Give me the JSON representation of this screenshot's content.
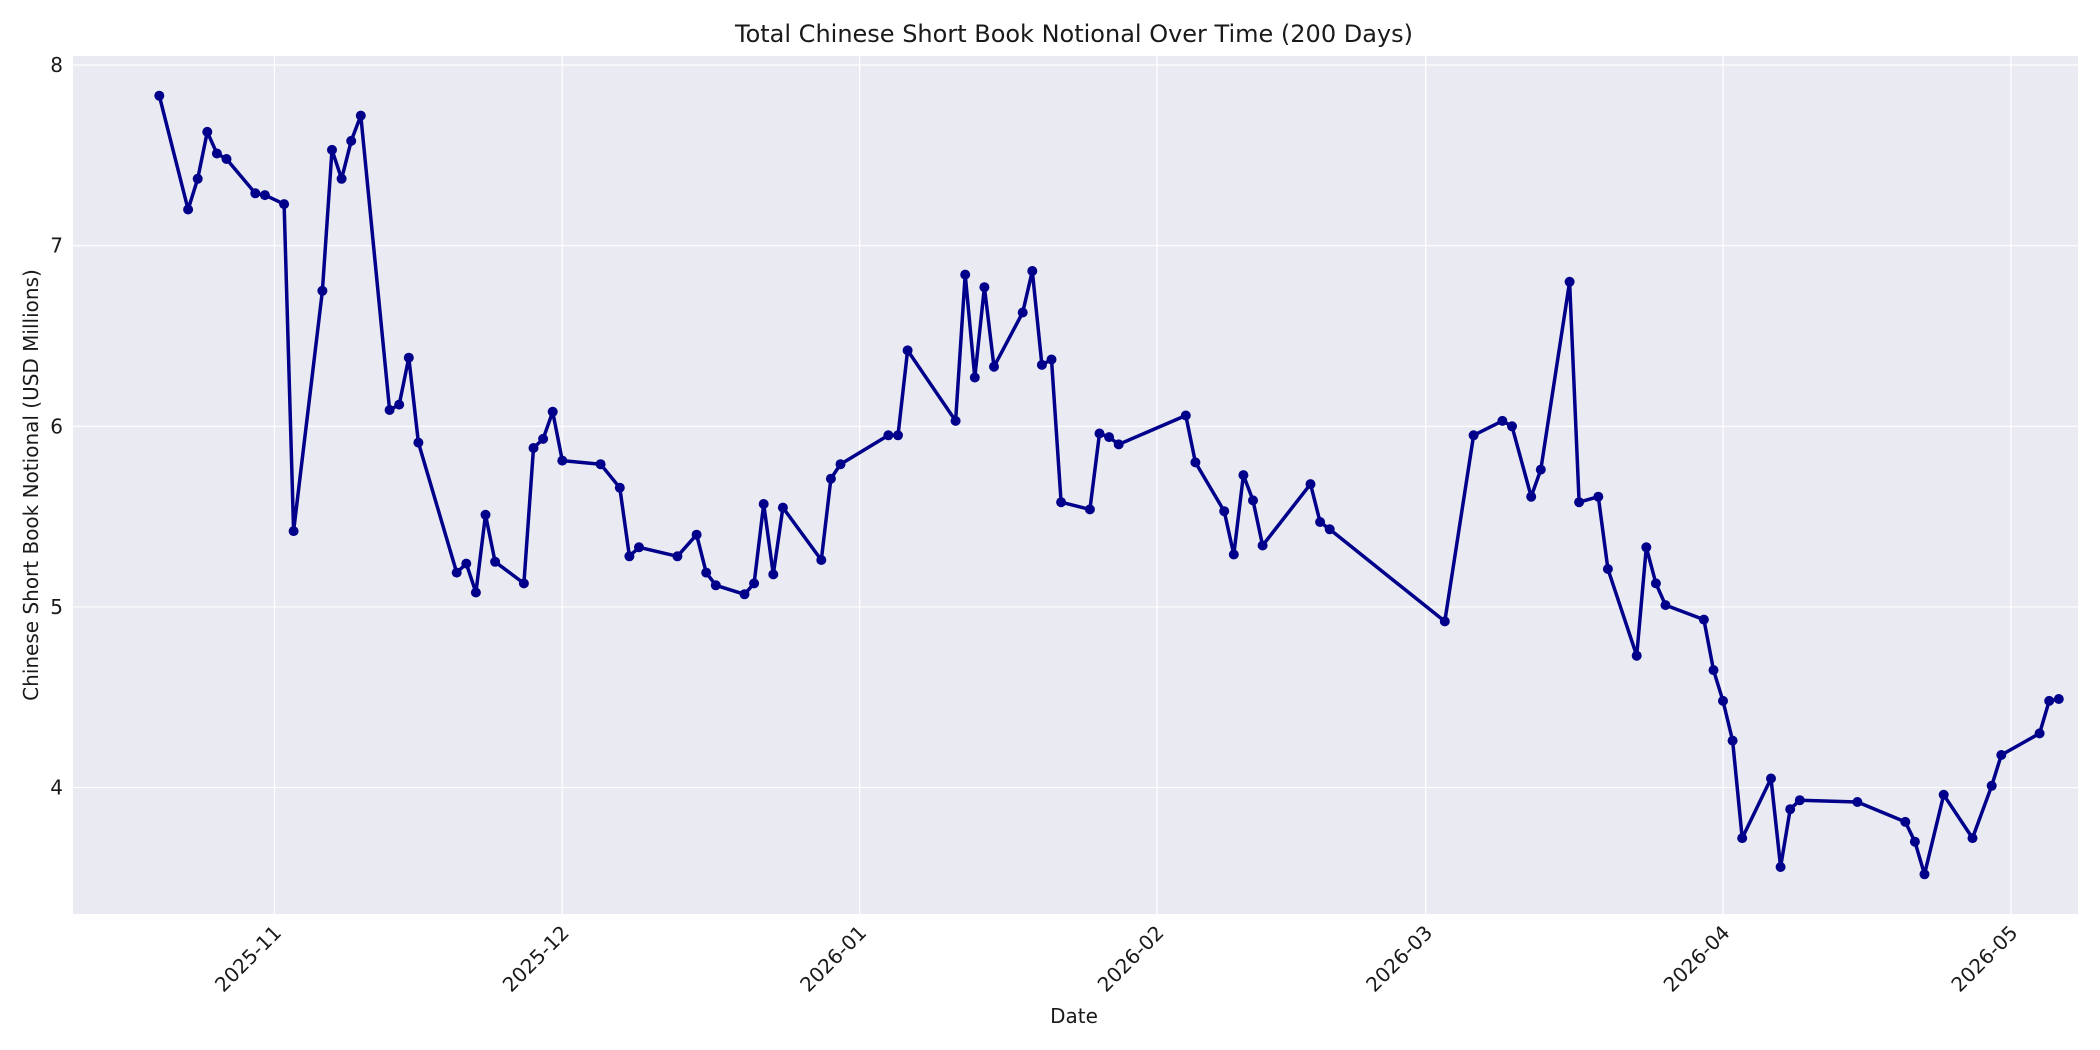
{
  "chart_data": {
    "type": "line",
    "title": "Total Chinese Short Book Notional Over Time (200 Days)",
    "xlabel": "Date",
    "ylabel": "Chinese Short Book Notional (USD Millions)",
    "x_type": "date",
    "xlim": [
      "2025-10-11",
      "2026-05-08"
    ],
    "ylim": [
      3.3,
      8.05
    ],
    "grid": true,
    "legend": "none",
    "x_ticks": [
      {
        "date": "2025-11-01",
        "label": "2025-11"
      },
      {
        "date": "2025-12-01",
        "label": "2025-12"
      },
      {
        "date": "2026-01-01",
        "label": "2026-01"
      },
      {
        "date": "2026-02-01",
        "label": "2026-02"
      },
      {
        "date": "2026-03-01",
        "label": "2026-03"
      },
      {
        "date": "2026-04-01",
        "label": "2026-04"
      },
      {
        "date": "2026-05-01",
        "label": "2026-05"
      }
    ],
    "y_ticks": [
      4,
      5,
      6,
      7,
      8
    ],
    "colors": {
      "series": "#00008B",
      "plot_background": "#EAEAF2",
      "grid": "#FFFFFF"
    },
    "series": [
      {
        "marker": "circle",
        "points": [
          [
            "2025-10-20",
            7.83
          ],
          [
            "2025-10-23",
            7.2
          ],
          [
            "2025-10-24",
            7.37
          ],
          [
            "2025-10-25",
            7.63
          ],
          [
            "2025-10-26",
            7.51
          ],
          [
            "2025-10-27",
            7.48
          ],
          [
            "2025-10-30",
            7.29
          ],
          [
            "2025-10-31",
            7.28
          ],
          [
            "2025-11-02",
            7.23
          ],
          [
            "2025-11-03",
            5.42
          ],
          [
            "2025-11-06",
            6.75
          ],
          [
            "2025-11-07",
            7.53
          ],
          [
            "2025-11-08",
            7.37
          ],
          [
            "2025-11-09",
            7.58
          ],
          [
            "2025-11-10",
            7.72
          ],
          [
            "2025-11-13",
            6.09
          ],
          [
            "2025-11-14",
            6.12
          ],
          [
            "2025-11-15",
            6.38
          ],
          [
            "2025-11-16",
            5.91
          ],
          [
            "2025-11-20",
            5.19
          ],
          [
            "2025-11-21",
            5.24
          ],
          [
            "2025-11-22",
            5.08
          ],
          [
            "2025-11-23",
            5.51
          ],
          [
            "2025-11-24",
            5.25
          ],
          [
            "2025-11-27",
            5.13
          ],
          [
            "2025-11-28",
            5.88
          ],
          [
            "2025-11-29",
            5.93
          ],
          [
            "2025-11-30",
            6.08
          ],
          [
            "2025-12-01",
            5.81
          ],
          [
            "2025-12-05",
            5.79
          ],
          [
            "2025-12-07",
            5.66
          ],
          [
            "2025-12-08",
            5.28
          ],
          [
            "2025-12-09",
            5.33
          ],
          [
            "2025-12-13",
            5.28
          ],
          [
            "2025-12-15",
            5.4
          ],
          [
            "2025-12-16",
            5.19
          ],
          [
            "2025-12-17",
            5.12
          ],
          [
            "2025-12-20",
            5.07
          ],
          [
            "2025-12-21",
            5.13
          ],
          [
            "2025-12-22",
            5.57
          ],
          [
            "2025-12-23",
            5.18
          ],
          [
            "2025-12-24",
            5.55
          ],
          [
            "2025-12-28",
            5.26
          ],
          [
            "2025-12-29",
            5.71
          ],
          [
            "2025-12-30",
            5.79
          ],
          [
            "2026-01-04",
            5.95
          ],
          [
            "2026-01-05",
            5.95
          ],
          [
            "2026-01-06",
            6.42
          ],
          [
            "2026-01-11",
            6.03
          ],
          [
            "2026-01-12",
            6.84
          ],
          [
            "2026-01-13",
            6.27
          ],
          [
            "2026-01-14",
            6.77
          ],
          [
            "2026-01-15",
            6.33
          ],
          [
            "2026-01-18",
            6.63
          ],
          [
            "2026-01-19",
            6.86
          ],
          [
            "2026-01-20",
            6.34
          ],
          [
            "2026-01-21",
            6.37
          ],
          [
            "2026-01-22",
            5.58
          ],
          [
            "2026-01-25",
            5.54
          ],
          [
            "2026-01-26",
            5.96
          ],
          [
            "2026-01-27",
            5.94
          ],
          [
            "2026-01-28",
            5.9
          ],
          [
            "2026-02-04",
            6.06
          ],
          [
            "2026-02-05",
            5.8
          ],
          [
            "2026-02-08",
            5.53
          ],
          [
            "2026-02-09",
            5.29
          ],
          [
            "2026-02-10",
            5.73
          ],
          [
            "2026-02-11",
            5.59
          ],
          [
            "2026-02-12",
            5.34
          ],
          [
            "2026-02-17",
            5.68
          ],
          [
            "2026-02-18",
            5.47
          ],
          [
            "2026-02-19",
            5.43
          ],
          [
            "2026-03-03",
            4.92
          ],
          [
            "2026-03-06",
            5.95
          ],
          [
            "2026-03-09",
            6.03
          ],
          [
            "2026-03-10",
            6.0
          ],
          [
            "2026-03-12",
            5.61
          ],
          [
            "2026-03-13",
            5.76
          ],
          [
            "2026-03-16",
            6.8
          ],
          [
            "2026-03-17",
            5.58
          ],
          [
            "2026-03-19",
            5.61
          ],
          [
            "2026-03-20",
            5.21
          ],
          [
            "2026-03-23",
            4.73
          ],
          [
            "2026-03-24",
            5.33
          ],
          [
            "2026-03-25",
            5.13
          ],
          [
            "2026-03-26",
            5.01
          ],
          [
            "2026-03-30",
            4.93
          ],
          [
            "2026-03-31",
            4.65
          ],
          [
            "2026-04-01",
            4.48
          ],
          [
            "2026-04-02",
            4.26
          ],
          [
            "2026-04-03",
            3.72
          ],
          [
            "2026-04-06",
            4.05
          ],
          [
            "2026-04-07",
            3.56
          ],
          [
            "2026-04-08",
            3.88
          ],
          [
            "2026-04-09",
            3.93
          ],
          [
            "2026-04-15",
            3.92
          ],
          [
            "2026-04-20",
            3.81
          ],
          [
            "2026-04-21",
            3.7
          ],
          [
            "2026-04-22",
            3.52
          ],
          [
            "2026-04-24",
            3.96
          ],
          [
            "2026-04-27",
            3.72
          ],
          [
            "2026-04-29",
            4.01
          ],
          [
            "2026-04-30",
            4.18
          ],
          [
            "2026-05-04",
            4.3
          ],
          [
            "2026-05-05",
            4.48
          ],
          [
            "2026-05-06",
            4.49
          ]
        ]
      }
    ]
  }
}
